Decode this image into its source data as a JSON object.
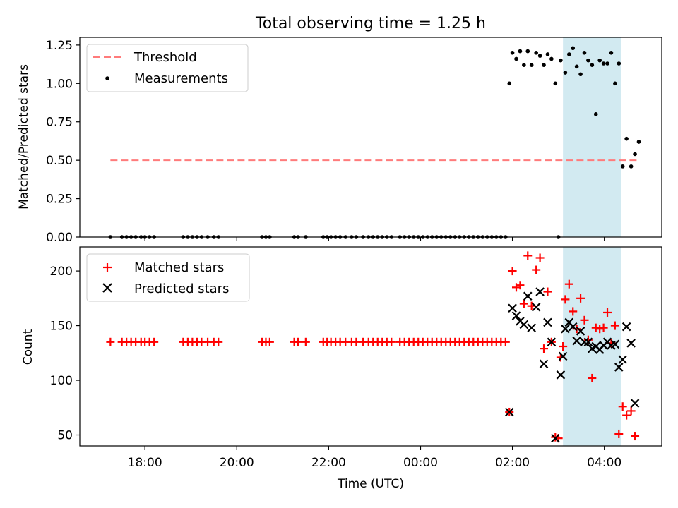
{
  "title": "Total observing time = 1.25 h",
  "x_axis_label": "Time (UTC)",
  "colors": {
    "threshold": "#ff7b7b",
    "highlight": "#add8e6",
    "matched": "#ff0000",
    "predicted": "#000000"
  },
  "chart_data": [
    {
      "type": "scatter",
      "ylabel": "Matched/Predicted stars",
      "ylim": [
        0,
        1.3
      ],
      "yticks": [
        0,
        0.25,
        0.5,
        0.75,
        1.0,
        1.25
      ],
      "ytick_labels": [
        "0.00",
        "0.25",
        "0.50",
        "0.75",
        "1.00",
        "1.25"
      ],
      "legend": {
        "position": "top-left",
        "threshold_label": "Threshold",
        "measurements_label": "Measurements"
      },
      "threshold": {
        "value": 0.5,
        "x_start": "17:15",
        "x_end": "04:45"
      },
      "highlight": {
        "x_start": "03:06",
        "x_end": "04:22"
      },
      "measurements": [
        {
          "x": "17:15",
          "y": 0
        },
        {
          "x": "17:30",
          "y": 0
        },
        {
          "x": "17:36",
          "y": 0
        },
        {
          "x": "17:42",
          "y": 0
        },
        {
          "x": "17:48",
          "y": 0
        },
        {
          "x": "17:55",
          "y": 0
        },
        {
          "x": "18:00",
          "y": 0
        },
        {
          "x": "18:06",
          "y": 0
        },
        {
          "x": "18:12",
          "y": 0
        },
        {
          "x": "18:50",
          "y": 0
        },
        {
          "x": "18:56",
          "y": 0
        },
        {
          "x": "19:02",
          "y": 0
        },
        {
          "x": "19:08",
          "y": 0
        },
        {
          "x": "19:14",
          "y": 0
        },
        {
          "x": "19:22",
          "y": 0
        },
        {
          "x": "19:30",
          "y": 0
        },
        {
          "x": "19:36",
          "y": 0
        },
        {
          "x": "20:33",
          "y": 0
        },
        {
          "x": "20:38",
          "y": 0
        },
        {
          "x": "20:43",
          "y": 0
        },
        {
          "x": "21:15",
          "y": 0
        },
        {
          "x": "21:20",
          "y": 0
        },
        {
          "x": "21:30",
          "y": 0
        },
        {
          "x": "21:53",
          "y": 0
        },
        {
          "x": "21:58",
          "y": 0
        },
        {
          "x": "22:03",
          "y": 0
        },
        {
          "x": "22:09",
          "y": 0
        },
        {
          "x": "22:15",
          "y": 0
        },
        {
          "x": "22:22",
          "y": 0
        },
        {
          "x": "22:30",
          "y": 0
        },
        {
          "x": "22:36",
          "y": 0
        },
        {
          "x": "22:45",
          "y": 0
        },
        {
          "x": "22:52",
          "y": 0
        },
        {
          "x": "22:58",
          "y": 0
        },
        {
          "x": "23:04",
          "y": 0
        },
        {
          "x": "23:10",
          "y": 0
        },
        {
          "x": "23:16",
          "y": 0
        },
        {
          "x": "23:22",
          "y": 0
        },
        {
          "x": "23:33",
          "y": 0
        },
        {
          "x": "23:39",
          "y": 0
        },
        {
          "x": "23:45",
          "y": 0
        },
        {
          "x": "23:51",
          "y": 0
        },
        {
          "x": "23:57",
          "y": 0
        },
        {
          "x": "00:03",
          "y": 0
        },
        {
          "x": "00:09",
          "y": 0
        },
        {
          "x": "00:15",
          "y": 0
        },
        {
          "x": "00:21",
          "y": 0
        },
        {
          "x": "00:27",
          "y": 0
        },
        {
          "x": "00:33",
          "y": 0
        },
        {
          "x": "00:39",
          "y": 0
        },
        {
          "x": "00:45",
          "y": 0
        },
        {
          "x": "00:51",
          "y": 0
        },
        {
          "x": "00:57",
          "y": 0
        },
        {
          "x": "01:03",
          "y": 0
        },
        {
          "x": "01:09",
          "y": 0
        },
        {
          "x": "01:15",
          "y": 0
        },
        {
          "x": "01:21",
          "y": 0
        },
        {
          "x": "01:27",
          "y": 0
        },
        {
          "x": "01:33",
          "y": 0
        },
        {
          "x": "01:39",
          "y": 0
        },
        {
          "x": "01:45",
          "y": 0
        },
        {
          "x": "01:51",
          "y": 0
        },
        {
          "x": "01:56",
          "y": 1.0
        },
        {
          "x": "02:00",
          "y": 1.2
        },
        {
          "x": "02:05",
          "y": 1.16
        },
        {
          "x": "02:10",
          "y": 1.21
        },
        {
          "x": "02:15",
          "y": 1.12
        },
        {
          "x": "02:20",
          "y": 1.21
        },
        {
          "x": "02:25",
          "y": 1.12
        },
        {
          "x": "02:31",
          "y": 1.2
        },
        {
          "x": "02:36",
          "y": 1.18
        },
        {
          "x": "02:41",
          "y": 1.12
        },
        {
          "x": "02:46",
          "y": 1.19
        },
        {
          "x": "02:51",
          "y": 1.16
        },
        {
          "x": "02:56",
          "y": 1.0
        },
        {
          "x": "03:00",
          "y": 0
        },
        {
          "x": "03:03",
          "y": 1.15
        },
        {
          "x": "03:09",
          "y": 1.07
        },
        {
          "x": "03:14",
          "y": 1.19
        },
        {
          "x": "03:19",
          "y": 1.23
        },
        {
          "x": "03:24",
          "y": 1.11
        },
        {
          "x": "03:29",
          "y": 1.06
        },
        {
          "x": "03:34",
          "y": 1.2
        },
        {
          "x": "03:39",
          "y": 1.15
        },
        {
          "x": "03:44",
          "y": 1.12
        },
        {
          "x": "03:49",
          "y": 0.8
        },
        {
          "x": "03:54",
          "y": 1.15
        },
        {
          "x": "03:59",
          "y": 1.13
        },
        {
          "x": "04:04",
          "y": 1.13
        },
        {
          "x": "04:09",
          "y": 1.2
        },
        {
          "x": "04:14",
          "y": 1.0
        },
        {
          "x": "04:19",
          "y": 1.13
        },
        {
          "x": "04:24",
          "y": 0.46
        },
        {
          "x": "04:29",
          "y": 0.64
        },
        {
          "x": "04:35",
          "y": 0.46
        },
        {
          "x": "04:40",
          "y": 0.54
        },
        {
          "x": "04:45",
          "y": 0.62
        }
      ]
    },
    {
      "type": "scatter",
      "ylabel": "Count",
      "ylim": [
        40,
        222
      ],
      "yticks": [
        50,
        100,
        150,
        200
      ],
      "ytick_labels": [
        "50",
        "100",
        "150",
        "200"
      ],
      "xticks": [
        "18:00",
        "20:00",
        "22:00",
        "00:00",
        "02:00",
        "04:00"
      ],
      "xlim": [
        "16:35",
        "05:15"
      ],
      "legend": {
        "position": "top-left",
        "matched_label": "Matched stars",
        "predicted_label": "Predicted stars"
      },
      "highlight": {
        "x_start": "03:06",
        "x_end": "04:22"
      },
      "matched_stars": [
        {
          "x": "17:15",
          "y": 135
        },
        {
          "x": "17:30",
          "y": 135
        },
        {
          "x": "17:36",
          "y": 135
        },
        {
          "x": "17:42",
          "y": 135
        },
        {
          "x": "17:48",
          "y": 135
        },
        {
          "x": "17:55",
          "y": 135
        },
        {
          "x": "18:00",
          "y": 135
        },
        {
          "x": "18:06",
          "y": 135
        },
        {
          "x": "18:12",
          "y": 135
        },
        {
          "x": "18:50",
          "y": 135
        },
        {
          "x": "18:56",
          "y": 135
        },
        {
          "x": "19:02",
          "y": 135
        },
        {
          "x": "19:08",
          "y": 135
        },
        {
          "x": "19:14",
          "y": 135
        },
        {
          "x": "19:22",
          "y": 135
        },
        {
          "x": "19:30",
          "y": 135
        },
        {
          "x": "19:36",
          "y": 135
        },
        {
          "x": "20:33",
          "y": 135
        },
        {
          "x": "20:38",
          "y": 135
        },
        {
          "x": "20:43",
          "y": 135
        },
        {
          "x": "21:15",
          "y": 135
        },
        {
          "x": "21:20",
          "y": 135
        },
        {
          "x": "21:30",
          "y": 135
        },
        {
          "x": "21:53",
          "y": 135
        },
        {
          "x": "21:58",
          "y": 135
        },
        {
          "x": "22:03",
          "y": 135
        },
        {
          "x": "22:09",
          "y": 135
        },
        {
          "x": "22:15",
          "y": 135
        },
        {
          "x": "22:22",
          "y": 135
        },
        {
          "x": "22:30",
          "y": 135
        },
        {
          "x": "22:36",
          "y": 135
        },
        {
          "x": "22:45",
          "y": 135
        },
        {
          "x": "22:52",
          "y": 135
        },
        {
          "x": "22:58",
          "y": 135
        },
        {
          "x": "23:04",
          "y": 135
        },
        {
          "x": "23:10",
          "y": 135
        },
        {
          "x": "23:16",
          "y": 135
        },
        {
          "x": "23:22",
          "y": 135
        },
        {
          "x": "23:33",
          "y": 135
        },
        {
          "x": "23:39",
          "y": 135
        },
        {
          "x": "23:45",
          "y": 135
        },
        {
          "x": "23:51",
          "y": 135
        },
        {
          "x": "23:57",
          "y": 135
        },
        {
          "x": "00:03",
          "y": 135
        },
        {
          "x": "00:09",
          "y": 135
        },
        {
          "x": "00:15",
          "y": 135
        },
        {
          "x": "00:21",
          "y": 135
        },
        {
          "x": "00:27",
          "y": 135
        },
        {
          "x": "00:33",
          "y": 135
        },
        {
          "x": "00:39",
          "y": 135
        },
        {
          "x": "00:45",
          "y": 135
        },
        {
          "x": "00:51",
          "y": 135
        },
        {
          "x": "00:57",
          "y": 135
        },
        {
          "x": "01:03",
          "y": 135
        },
        {
          "x": "01:09",
          "y": 135
        },
        {
          "x": "01:15",
          "y": 135
        },
        {
          "x": "01:21",
          "y": 135
        },
        {
          "x": "01:27",
          "y": 135
        },
        {
          "x": "01:33",
          "y": 135
        },
        {
          "x": "01:39",
          "y": 135
        },
        {
          "x": "01:45",
          "y": 135
        },
        {
          "x": "01:51",
          "y": 135
        },
        {
          "x": "01:56",
          "y": 71
        },
        {
          "x": "02:00",
          "y": 200
        },
        {
          "x": "02:05",
          "y": 185
        },
        {
          "x": "02:10",
          "y": 187
        },
        {
          "x": "02:15",
          "y": 170
        },
        {
          "x": "02:20",
          "y": 214
        },
        {
          "x": "02:25",
          "y": 168
        },
        {
          "x": "02:31",
          "y": 201
        },
        {
          "x": "02:36",
          "y": 212
        },
        {
          "x": "02:41",
          "y": 129
        },
        {
          "x": "02:46",
          "y": 181
        },
        {
          "x": "02:51",
          "y": 135
        },
        {
          "x": "02:56",
          "y": 48
        },
        {
          "x": "03:00",
          "y": 47
        },
        {
          "x": "03:03",
          "y": 121
        },
        {
          "x": "03:06",
          "y": 131
        },
        {
          "x": "03:09",
          "y": 174
        },
        {
          "x": "03:14",
          "y": 188
        },
        {
          "x": "03:19",
          "y": 163
        },
        {
          "x": "03:24",
          "y": 147
        },
        {
          "x": "03:29",
          "y": 175
        },
        {
          "x": "03:34",
          "y": 155
        },
        {
          "x": "03:39",
          "y": 137
        },
        {
          "x": "03:44",
          "y": 102
        },
        {
          "x": "03:49",
          "y": 148
        },
        {
          "x": "03:54",
          "y": 147
        },
        {
          "x": "03:59",
          "y": 148
        },
        {
          "x": "04:04",
          "y": 162
        },
        {
          "x": "04:09",
          "y": 134
        },
        {
          "x": "04:14",
          "y": 150
        },
        {
          "x": "04:19",
          "y": 51
        },
        {
          "x": "04:24",
          "y": 76
        },
        {
          "x": "04:29",
          "y": 68
        },
        {
          "x": "04:35",
          "y": 72
        },
        {
          "x": "04:40",
          "y": 49
        }
      ],
      "predicted_stars": [
        {
          "x": "01:56",
          "y": 71
        },
        {
          "x": "02:00",
          "y": 166
        },
        {
          "x": "02:05",
          "y": 159
        },
        {
          "x": "02:10",
          "y": 154
        },
        {
          "x": "02:15",
          "y": 151
        },
        {
          "x": "02:20",
          "y": 177
        },
        {
          "x": "02:25",
          "y": 148
        },
        {
          "x": "02:31",
          "y": 167
        },
        {
          "x": "02:36",
          "y": 181
        },
        {
          "x": "02:41",
          "y": 115
        },
        {
          "x": "02:46",
          "y": 153
        },
        {
          "x": "02:51",
          "y": 135
        },
        {
          "x": "02:56",
          "y": 47
        },
        {
          "x": "03:03",
          "y": 105
        },
        {
          "x": "03:06",
          "y": 122
        },
        {
          "x": "03:09",
          "y": 147
        },
        {
          "x": "03:14",
          "y": 153
        },
        {
          "x": "03:19",
          "y": 149
        },
        {
          "x": "03:24",
          "y": 136
        },
        {
          "x": "03:29",
          "y": 145
        },
        {
          "x": "03:34",
          "y": 135
        },
        {
          "x": "03:39",
          "y": 135
        },
        {
          "x": "03:44",
          "y": 129
        },
        {
          "x": "03:49",
          "y": 131
        },
        {
          "x": "03:54",
          "y": 128
        },
        {
          "x": "03:59",
          "y": 132
        },
        {
          "x": "04:04",
          "y": 135
        },
        {
          "x": "04:09",
          "y": 132
        },
        {
          "x": "04:14",
          "y": 133
        },
        {
          "x": "04:19",
          "y": 112
        },
        {
          "x": "04:24",
          "y": 119
        },
        {
          "x": "04:29",
          "y": 149
        },
        {
          "x": "04:35",
          "y": 134
        },
        {
          "x": "04:40",
          "y": 79
        }
      ]
    }
  ]
}
